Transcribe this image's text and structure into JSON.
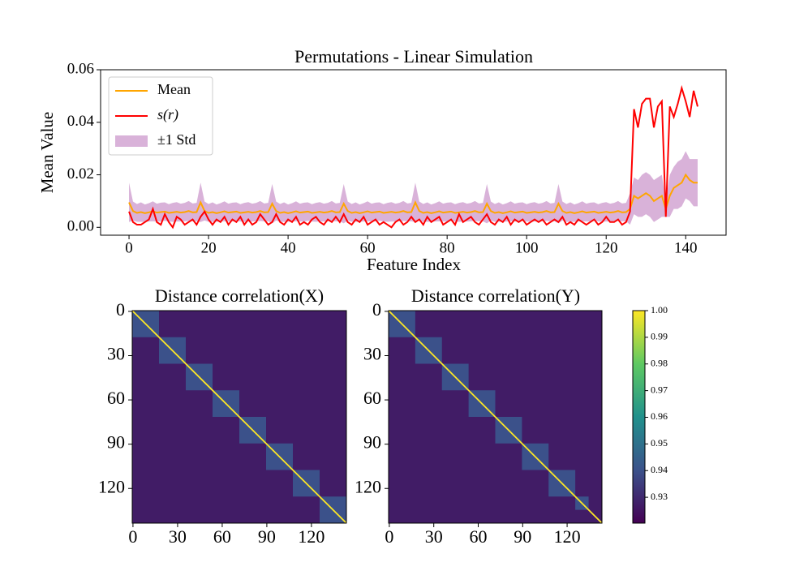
{
  "chart_data": [
    {
      "type": "line",
      "title": "Permutations - Linear Simulation",
      "x_label": "Feature Index",
      "y_label": "Mean Value",
      "x": [
        0,
        1,
        2,
        3,
        4,
        5,
        6,
        7,
        8,
        9,
        10,
        11,
        12,
        13,
        14,
        15,
        16,
        17,
        18,
        19,
        20,
        21,
        22,
        23,
        24,
        25,
        26,
        27,
        28,
        29,
        30,
        31,
        32,
        33,
        34,
        35,
        36,
        37,
        38,
        39,
        40,
        41,
        42,
        43,
        44,
        45,
        46,
        47,
        48,
        49,
        50,
        51,
        52,
        53,
        54,
        55,
        56,
        57,
        58,
        59,
        60,
        61,
        62,
        63,
        64,
        65,
        66,
        67,
        68,
        69,
        70,
        71,
        72,
        73,
        74,
        75,
        76,
        77,
        78,
        79,
        80,
        81,
        82,
        83,
        84,
        85,
        86,
        87,
        88,
        89,
        90,
        91,
        92,
        93,
        94,
        95,
        96,
        97,
        98,
        99,
        100,
        101,
        102,
        103,
        104,
        105,
        106,
        107,
        108,
        109,
        110,
        111,
        112,
        113,
        114,
        115,
        116,
        117,
        118,
        119,
        120,
        121,
        122,
        123,
        124,
        125,
        126,
        127,
        128,
        129,
        130,
        131,
        132,
        133,
        134,
        135,
        136,
        137,
        138,
        139,
        140,
        141,
        142,
        143
      ],
      "series": [
        {
          "name": "Mean",
          "color": "#ffa500",
          "values": [
            0.0095,
            0.0062,
            0.0055,
            0.0058,
            0.0054,
            0.0057,
            0.0061,
            0.0056,
            0.0058,
            0.006,
            0.0055,
            0.0057,
            0.0059,
            0.0056,
            0.0058,
            0.0062,
            0.0057,
            0.0058,
            0.0095,
            0.0062,
            0.0055,
            0.0058,
            0.0054,
            0.0057,
            0.0061,
            0.0056,
            0.0058,
            0.006,
            0.0055,
            0.0057,
            0.0059,
            0.0056,
            0.0058,
            0.0062,
            0.0057,
            0.0058,
            0.009,
            0.0062,
            0.0055,
            0.0058,
            0.0054,
            0.0057,
            0.0061,
            0.0056,
            0.0058,
            0.006,
            0.0055,
            0.0057,
            0.0059,
            0.0056,
            0.0058,
            0.0062,
            0.0057,
            0.0058,
            0.009,
            0.0062,
            0.0055,
            0.0058,
            0.0054,
            0.0057,
            0.0061,
            0.0056,
            0.0058,
            0.006,
            0.0055,
            0.0057,
            0.0059,
            0.0056,
            0.0058,
            0.0062,
            0.0057,
            0.0058,
            0.0095,
            0.0062,
            0.0055,
            0.0058,
            0.0054,
            0.0057,
            0.0061,
            0.0056,
            0.0058,
            0.006,
            0.0055,
            0.0057,
            0.0059,
            0.0056,
            0.0058,
            0.0062,
            0.0057,
            0.0058,
            0.009,
            0.0062,
            0.0055,
            0.0058,
            0.0054,
            0.0057,
            0.0061,
            0.0056,
            0.0058,
            0.006,
            0.0055,
            0.0057,
            0.0059,
            0.0056,
            0.0058,
            0.0062,
            0.0057,
            0.0058,
            0.009,
            0.0062,
            0.0055,
            0.0058,
            0.0054,
            0.0057,
            0.0061,
            0.0056,
            0.0058,
            0.006,
            0.0055,
            0.0057,
            0.0059,
            0.0056,
            0.0058,
            0.0062,
            0.0057,
            0.0058,
            0.007,
            0.012,
            0.011,
            0.012,
            0.013,
            0.012,
            0.01,
            0.011,
            0.012,
            0.007,
            0.012,
            0.015,
            0.016,
            0.017,
            0.02,
            0.018,
            0.017,
            0.017
          ]
        },
        {
          "name": "s(r)",
          "color": "#ff0000",
          "values": [
            0.006,
            0.002,
            0.001,
            0.001,
            0.002,
            0.003,
            0.007,
            0.002,
            0.001,
            0.005,
            0.002,
            0.0,
            0.004,
            0.003,
            0.001,
            0.002,
            0.003,
            0.001,
            0.004,
            0.006,
            0.003,
            0.001,
            0.003,
            0.002,
            0.004,
            0.001,
            0.003,
            0.002,
            0.004,
            0.001,
            0.003,
            0.001,
            0.002,
            0.005,
            0.003,
            0.001,
            0.002,
            0.005,
            0.002,
            0.001,
            0.003,
            0.002,
            0.004,
            0.001,
            0.002,
            0.001,
            0.003,
            0.004,
            0.002,
            0.001,
            0.003,
            0.002,
            0.004,
            0.002,
            0.005,
            0.002,
            0.001,
            0.003,
            0.002,
            0.004,
            0.001,
            0.002,
            0.003,
            0.001,
            0.002,
            0.001,
            0.0,
            0.002,
            0.003,
            0.001,
            0.002,
            0.004,
            0.002,
            0.003,
            0.001,
            0.004,
            0.002,
            0.003,
            0.004,
            0.001,
            0.002,
            0.003,
            0.001,
            0.005,
            0.002,
            0.003,
            0.004,
            0.002,
            0.001,
            0.003,
            0.005,
            0.002,
            0.001,
            0.003,
            0.002,
            0.004,
            0.001,
            0.003,
            0.002,
            0.003,
            0.001,
            0.002,
            0.003,
            0.002,
            0.003,
            0.001,
            0.002,
            0.003,
            0.002,
            0.004,
            0.001,
            0.002,
            0.001,
            0.003,
            0.002,
            0.001,
            0.002,
            0.003,
            0.001,
            0.002,
            0.004,
            0.002,
            0.002,
            0.003,
            0.001,
            0.002,
            0.006,
            0.045,
            0.038,
            0.047,
            0.049,
            0.049,
            0.038,
            0.046,
            0.048,
            0.004,
            0.046,
            0.042,
            0.047,
            0.053,
            0.048,
            0.042,
            0.052,
            0.046
          ]
        },
        {
          "name": "±1 Std",
          "color": "#800080",
          "alpha": 0.3,
          "values": [
            0.0075,
            0.0036,
            0.0034,
            0.0037,
            0.0033,
            0.0035,
            0.0038,
            0.0034,
            0.0036,
            0.0035,
            0.0033,
            0.0036,
            0.0037,
            0.0034,
            0.0035,
            0.0038,
            0.0034,
            0.0035,
            0.0075,
            0.0036,
            0.0034,
            0.0037,
            0.0033,
            0.0035,
            0.0038,
            0.0034,
            0.0036,
            0.0035,
            0.0033,
            0.0036,
            0.0037,
            0.0034,
            0.0035,
            0.0038,
            0.0034,
            0.0035,
            0.0075,
            0.0036,
            0.0034,
            0.0037,
            0.0033,
            0.0035,
            0.0038,
            0.0034,
            0.0036,
            0.0035,
            0.0033,
            0.0036,
            0.0037,
            0.0034,
            0.0035,
            0.0038,
            0.0034,
            0.0035,
            0.0075,
            0.0036,
            0.0034,
            0.0037,
            0.0033,
            0.0035,
            0.0038,
            0.0034,
            0.0036,
            0.0035,
            0.0033,
            0.0036,
            0.0037,
            0.0034,
            0.0035,
            0.0038,
            0.0034,
            0.0035,
            0.0075,
            0.0036,
            0.0034,
            0.0037,
            0.0033,
            0.0035,
            0.0038,
            0.0034,
            0.0036,
            0.0035,
            0.0033,
            0.0036,
            0.0037,
            0.0034,
            0.0035,
            0.0038,
            0.0034,
            0.0035,
            0.0075,
            0.0036,
            0.0034,
            0.0037,
            0.0033,
            0.0035,
            0.0038,
            0.0034,
            0.0036,
            0.0035,
            0.0033,
            0.0036,
            0.0037,
            0.0034,
            0.0035,
            0.0038,
            0.0034,
            0.0035,
            0.0075,
            0.0036,
            0.0034,
            0.0037,
            0.0033,
            0.0035,
            0.0038,
            0.0034,
            0.0036,
            0.0035,
            0.0033,
            0.0036,
            0.0037,
            0.0034,
            0.0035,
            0.0038,
            0.0034,
            0.0035,
            0.006,
            0.007,
            0.007,
            0.008,
            0.008,
            0.008,
            0.008,
            0.008,
            0.008,
            0.003,
            0.008,
            0.008,
            0.009,
            0.009,
            0.009,
            0.008,
            0.009,
            0.009
          ]
        }
      ],
      "xlim": [
        -7.15,
        150.15
      ],
      "xticks": [
        0,
        20,
        40,
        60,
        80,
        100,
        120,
        140
      ],
      "ylim": [
        -0.003,
        0.06
      ],
      "yticks": [
        {
          "value": 0,
          "label": "0.00"
        },
        {
          "value": 0.02,
          "label": "0.02"
        },
        {
          "value": 0.04,
          "label": "0.04"
        },
        {
          "value": 0.06,
          "label": "0.06"
        }
      ],
      "legend": "upper-left"
    },
    {
      "type": "heatmap",
      "title": "Distance correlation(X)",
      "size": 144,
      "background": 0.927,
      "diagonal": 1.0,
      "blocks": [
        {
          "start": 0,
          "end": 18,
          "value": 0.94
        },
        {
          "start": 18,
          "end": 36,
          "value": 0.94
        },
        {
          "start": 36,
          "end": 54,
          "value": 0.94
        },
        {
          "start": 54,
          "end": 72,
          "value": 0.94
        },
        {
          "start": 72,
          "end": 90,
          "value": 0.94
        },
        {
          "start": 90,
          "end": 108,
          "value": 0.94
        },
        {
          "start": 108,
          "end": 126,
          "value": 0.94
        },
        {
          "start": 126,
          "end": 144,
          "value": 0.94
        }
      ],
      "xlim": [
        -0.5,
        143.5
      ],
      "ylim": [
        143.5,
        -0.5
      ],
      "xticks": [
        0,
        30,
        60,
        90,
        120
      ],
      "yticks": [
        0,
        30,
        60,
        90,
        120
      ],
      "colormap": "viridis",
      "clim": [
        0.9203,
        1.0
      ]
    },
    {
      "type": "heatmap",
      "title": "Distance correlation(Y)",
      "size": 144,
      "background": 0.927,
      "diagonal": 1.0,
      "blocks": [
        {
          "start": 0,
          "end": 18,
          "value": 0.94
        },
        {
          "start": 18,
          "end": 36,
          "value": 0.94
        },
        {
          "start": 36,
          "end": 54,
          "value": 0.94
        },
        {
          "start": 54,
          "end": 72,
          "value": 0.94
        },
        {
          "start": 72,
          "end": 90,
          "value": 0.94
        },
        {
          "start": 90,
          "end": 108,
          "value": 0.94
        },
        {
          "start": 108,
          "end": 126,
          "value": 0.94
        },
        {
          "start": 126,
          "end": 135,
          "value": 0.94
        }
      ],
      "xlim": [
        -0.5,
        143.5
      ],
      "ylim": [
        143.5,
        -0.5
      ],
      "xticks": [
        0,
        30,
        60,
        90,
        120
      ],
      "yticks": [
        0,
        30,
        60,
        90,
        120
      ],
      "colormap": "viridis",
      "clim": [
        0.9203,
        1.0
      ],
      "colorbar_ticks": [
        0.93,
        0.94,
        0.95,
        0.96,
        0.97,
        0.98,
        0.99,
        {
          "value": 1,
          "label": "1.00"
        }
      ]
    }
  ]
}
